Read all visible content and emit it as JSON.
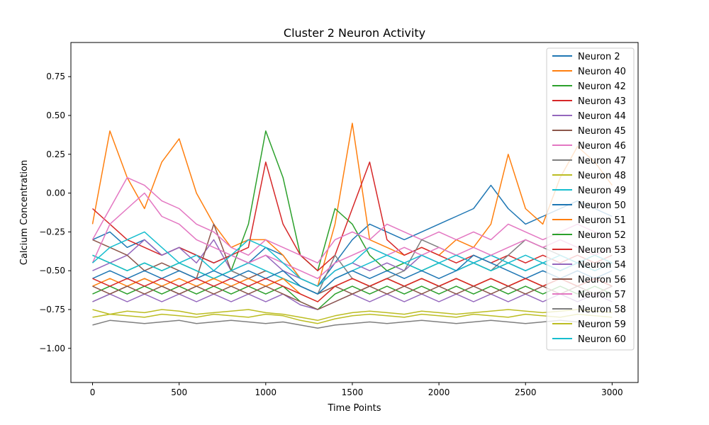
{
  "chart_data": {
    "type": "line",
    "title": "Cluster 2 Neuron Activity",
    "xlabel": "Time Points",
    "ylabel": "Calcium Concentration",
    "xlim": [
      -125,
      3150
    ],
    "ylim": [
      -1.22,
      0.97
    ],
    "x_ticks": [
      0,
      500,
      1000,
      1500,
      2000,
      2500,
      3000
    ],
    "x_tick_labels": [
      "0",
      "500",
      "1000",
      "1500",
      "2000",
      "2500",
      "3000"
    ],
    "y_ticks": [
      -1.0,
      -0.75,
      -0.5,
      -0.25,
      0.0,
      0.25,
      0.5,
      0.75
    ],
    "y_tick_labels": [
      "−1.00",
      "−0.75",
      "−0.50",
      "−0.25",
      "0.00",
      "0.25",
      "0.50",
      "0.75"
    ],
    "grid": false,
    "legend_position": "top-right",
    "x": [
      0,
      100,
      200,
      300,
      400,
      500,
      600,
      700,
      800,
      900,
      1000,
      1100,
      1200,
      1300,
      1400,
      1500,
      1600,
      1700,
      1800,
      1900,
      2000,
      2100,
      2200,
      2300,
      2400,
      2500,
      2600,
      2700,
      2800,
      2900,
      3000
    ],
    "series": [
      {
        "name": "Neuron 2",
        "color": "#1f77b4",
        "values": [
          -0.3,
          -0.25,
          -0.35,
          -0.3,
          -0.4,
          -0.35,
          -0.4,
          -0.45,
          -0.4,
          -0.45,
          -0.35,
          -0.4,
          -0.55,
          -0.6,
          -0.45,
          -0.3,
          -0.2,
          -0.25,
          -0.3,
          -0.25,
          -0.2,
          -0.15,
          -0.1,
          0.05,
          -0.1,
          -0.2,
          -0.15,
          -0.1,
          -0.05,
          -0.1,
          -0.15
        ]
      },
      {
        "name": "Neuron 40",
        "color": "#ff7f0e",
        "values": [
          -0.2,
          0.4,
          0.1,
          -0.1,
          0.2,
          0.35,
          0.0,
          -0.2,
          -0.35,
          -0.3,
          -0.3,
          -0.4,
          -0.55,
          -0.6,
          -0.2,
          0.45,
          -0.3,
          -0.35,
          -0.4,
          -0.35,
          -0.4,
          -0.3,
          -0.35,
          -0.2,
          0.25,
          -0.1,
          -0.2,
          0.1,
          0.3,
          0.2,
          0.05
        ]
      },
      {
        "name": "Neuron 42",
        "color": "#2ca02c",
        "values": [
          -0.4,
          -0.45,
          -0.5,
          -0.45,
          -0.5,
          -0.45,
          -0.5,
          -0.55,
          -0.5,
          -0.2,
          0.4,
          0.1,
          -0.4,
          -0.5,
          -0.1,
          -0.2,
          -0.4,
          -0.5,
          -0.45,
          -0.5,
          -0.45,
          -0.5,
          -0.45,
          -0.5,
          -0.45,
          -0.5,
          -0.45,
          -0.5,
          -0.45,
          -0.5,
          -0.45
        ]
      },
      {
        "name": "Neuron 43",
        "color": "#d62728",
        "values": [
          -0.1,
          -0.2,
          -0.3,
          -0.35,
          -0.4,
          -0.35,
          -0.4,
          -0.45,
          -0.4,
          -0.35,
          0.2,
          -0.2,
          -0.4,
          -0.5,
          -0.4,
          -0.1,
          0.2,
          -0.3,
          -0.4,
          -0.35,
          -0.4,
          -0.45,
          -0.4,
          -0.45,
          -0.4,
          -0.45,
          -0.4,
          -0.45,
          -0.4,
          -0.45,
          -0.4
        ]
      },
      {
        "name": "Neuron 44",
        "color": "#9467bd",
        "values": [
          -0.5,
          -0.45,
          -0.4,
          -0.3,
          -0.4,
          -0.35,
          -0.45,
          -0.3,
          -0.5,
          -0.45,
          -0.4,
          -0.5,
          -0.55,
          -0.6,
          -0.5,
          -0.45,
          -0.5,
          -0.45,
          -0.5,
          -0.4,
          -0.45,
          -0.5,
          -0.45,
          -0.4,
          -0.45,
          -0.5,
          -0.45,
          -0.5,
          -0.45,
          -0.5,
          -0.45
        ]
      },
      {
        "name": "Neuron 45",
        "color": "#8c564b",
        "values": [
          -0.3,
          -0.35,
          -0.4,
          -0.5,
          -0.45,
          -0.5,
          -0.55,
          -0.2,
          -0.5,
          -0.55,
          -0.5,
          -0.55,
          -0.6,
          -0.65,
          -0.6,
          -0.65,
          -0.6,
          -0.55,
          -0.6,
          -0.55,
          -0.6,
          -0.55,
          -0.6,
          -0.55,
          -0.6,
          -0.55,
          -0.6,
          -0.55,
          -0.6,
          -0.55,
          -0.6
        ]
      },
      {
        "name": "Neuron 46",
        "color": "#e377c2",
        "values": [
          -0.3,
          -0.1,
          0.1,
          0.05,
          -0.05,
          -0.1,
          -0.2,
          -0.25,
          -0.35,
          -0.4,
          -0.3,
          -0.35,
          -0.4,
          -0.45,
          -0.3,
          -0.25,
          -0.3,
          -0.2,
          -0.25,
          -0.3,
          -0.25,
          -0.3,
          -0.25,
          -0.3,
          -0.2,
          -0.25,
          -0.3,
          -0.25,
          -0.2,
          -0.25,
          -0.3
        ]
      },
      {
        "name": "Neuron 47",
        "color": "#7f7f7f",
        "values": [
          -0.7,
          -0.65,
          -0.6,
          -0.55,
          -0.6,
          -0.65,
          -0.6,
          -0.55,
          -0.5,
          -0.55,
          -0.6,
          -0.55,
          -0.6,
          -0.65,
          -0.4,
          -0.55,
          -0.6,
          -0.55,
          -0.5,
          -0.3,
          -0.35,
          -0.4,
          -0.45,
          -0.5,
          -0.4,
          -0.3,
          -0.35,
          -0.4,
          -0.45,
          -0.4,
          -0.45
        ]
      },
      {
        "name": "Neuron 48",
        "color": "#bcbd22",
        "values": [
          -0.75,
          -0.78,
          -0.76,
          -0.77,
          -0.75,
          -0.76,
          -0.78,
          -0.77,
          -0.76,
          -0.75,
          -0.77,
          -0.78,
          -0.8,
          -0.82,
          -0.79,
          -0.77,
          -0.76,
          -0.77,
          -0.78,
          -0.76,
          -0.77,
          -0.78,
          -0.77,
          -0.76,
          -0.75,
          -0.76,
          -0.77,
          -0.76,
          -0.75,
          -0.76,
          -0.77
        ]
      },
      {
        "name": "Neuron 49",
        "color": "#17becf",
        "values": [
          -0.4,
          -0.45,
          -0.5,
          -0.45,
          -0.5,
          -0.45,
          -0.5,
          -0.55,
          -0.5,
          -0.45,
          -0.5,
          -0.55,
          -0.6,
          -0.65,
          -0.55,
          -0.5,
          -0.45,
          -0.4,
          -0.45,
          -0.5,
          -0.45,
          -0.5,
          -0.45,
          -0.4,
          -0.45,
          -0.5,
          -0.45,
          -0.4,
          -0.45,
          -0.5,
          -0.45
        ]
      },
      {
        "name": "Neuron 50",
        "color": "#1f77b4",
        "values": [
          -0.55,
          -0.5,
          -0.55,
          -0.5,
          -0.55,
          -0.5,
          -0.55,
          -0.5,
          -0.55,
          -0.5,
          -0.55,
          -0.5,
          -0.6,
          -0.65,
          -0.55,
          -0.5,
          -0.55,
          -0.5,
          -0.55,
          -0.5,
          -0.55,
          -0.5,
          -0.4,
          -0.45,
          -0.5,
          -0.55,
          -0.5,
          -0.55,
          -0.5,
          -0.55,
          -0.5
        ]
      },
      {
        "name": "Neuron 51",
        "color": "#ff7f0e",
        "values": [
          -0.6,
          -0.55,
          -0.6,
          -0.55,
          -0.6,
          -0.55,
          -0.6,
          -0.55,
          -0.6,
          -0.55,
          -0.6,
          -0.55,
          -0.65,
          -0.7,
          -0.6,
          -0.55,
          -0.6,
          -0.55,
          -0.6,
          -0.55,
          -0.6,
          -0.55,
          -0.6,
          -0.55,
          -0.6,
          -0.55,
          -0.6,
          -0.55,
          -0.6,
          -0.55,
          -0.6
        ]
      },
      {
        "name": "Neuron 52",
        "color": "#2ca02c",
        "values": [
          -0.65,
          -0.6,
          -0.65,
          -0.6,
          -0.65,
          -0.6,
          -0.65,
          -0.6,
          -0.65,
          -0.6,
          -0.65,
          -0.6,
          -0.7,
          -0.75,
          -0.65,
          -0.6,
          -0.65,
          -0.6,
          -0.65,
          -0.6,
          -0.65,
          -0.6,
          -0.65,
          -0.6,
          -0.65,
          -0.6,
          -0.65,
          -0.6,
          -0.65,
          -0.6,
          -0.65
        ]
      },
      {
        "name": "Neuron 53",
        "color": "#d62728",
        "values": [
          -0.55,
          -0.6,
          -0.55,
          -0.6,
          -0.55,
          -0.6,
          -0.55,
          -0.6,
          -0.55,
          -0.6,
          -0.55,
          -0.6,
          -0.65,
          -0.7,
          -0.6,
          -0.55,
          -0.6,
          -0.55,
          -0.6,
          -0.55,
          -0.6,
          -0.55,
          -0.6,
          -0.55,
          -0.6,
          -0.55,
          -0.6,
          -0.55,
          -0.6,
          -0.55,
          -0.6
        ]
      },
      {
        "name": "Neuron 54",
        "color": "#9467bd",
        "values": [
          -0.7,
          -0.65,
          -0.7,
          -0.65,
          -0.7,
          -0.65,
          -0.7,
          -0.65,
          -0.7,
          -0.65,
          -0.7,
          -0.65,
          -0.72,
          -0.75,
          -0.7,
          -0.65,
          -0.7,
          -0.65,
          -0.7,
          -0.65,
          -0.7,
          -0.65,
          -0.7,
          -0.65,
          -0.7,
          -0.65,
          -0.7,
          -0.65,
          -0.7,
          -0.65,
          -0.7
        ]
      },
      {
        "name": "Neuron 56",
        "color": "#8c564b",
        "values": [
          -0.6,
          -0.65,
          -0.6,
          -0.65,
          -0.6,
          -0.65,
          -0.6,
          -0.65,
          -0.6,
          -0.65,
          -0.6,
          -0.65,
          -0.7,
          -0.75,
          -0.7,
          -0.65,
          -0.6,
          -0.65,
          -0.6,
          -0.65,
          -0.6,
          -0.65,
          -0.6,
          -0.65,
          -0.6,
          -0.65,
          -0.6,
          -0.65,
          -0.6,
          -0.65,
          -0.6
        ]
      },
      {
        "name": "Neuron 57",
        "color": "#e377c2",
        "values": [
          -0.45,
          -0.2,
          -0.1,
          0.0,
          -0.15,
          -0.2,
          -0.3,
          -0.35,
          -0.4,
          -0.45,
          -0.4,
          -0.45,
          -0.5,
          -0.55,
          -0.45,
          -0.4,
          -0.35,
          -0.4,
          -0.35,
          -0.4,
          -0.35,
          -0.4,
          -0.35,
          -0.4,
          -0.35,
          -0.3,
          -0.35,
          -0.3,
          -0.35,
          -0.4,
          -0.35
        ]
      },
      {
        "name": "Neuron 58",
        "color": "#7f7f7f",
        "values": [
          -0.85,
          -0.82,
          -0.83,
          -0.84,
          -0.83,
          -0.82,
          -0.84,
          -0.83,
          -0.82,
          -0.83,
          -0.84,
          -0.83,
          -0.85,
          -0.87,
          -0.85,
          -0.84,
          -0.83,
          -0.84,
          -0.83,
          -0.82,
          -0.83,
          -0.84,
          -0.83,
          -0.82,
          -0.83,
          -0.84,
          -0.83,
          -0.82,
          -0.83,
          -0.84,
          -0.83
        ]
      },
      {
        "name": "Neuron 59",
        "color": "#bcbd22",
        "values": [
          -0.8,
          -0.78,
          -0.79,
          -0.8,
          -0.78,
          -0.79,
          -0.8,
          -0.78,
          -0.79,
          -0.8,
          -0.78,
          -0.79,
          -0.82,
          -0.84,
          -0.81,
          -0.79,
          -0.78,
          -0.79,
          -0.8,
          -0.78,
          -0.79,
          -0.8,
          -0.78,
          -0.79,
          -0.8,
          -0.78,
          -0.79,
          -0.8,
          -0.78,
          -0.79,
          -0.8
        ]
      },
      {
        "name": "Neuron 60",
        "color": "#17becf",
        "values": [
          -0.45,
          -0.35,
          -0.3,
          -0.25,
          -0.35,
          -0.45,
          -0.4,
          -0.5,
          -0.4,
          -0.3,
          -0.35,
          -0.45,
          -0.55,
          -0.6,
          -0.5,
          -0.45,
          -0.35,
          -0.4,
          -0.45,
          -0.4,
          -0.45,
          -0.4,
          -0.45,
          -0.5,
          -0.45,
          -0.4,
          -0.45,
          -0.5,
          -0.45,
          -0.4,
          -0.45
        ]
      }
    ]
  }
}
